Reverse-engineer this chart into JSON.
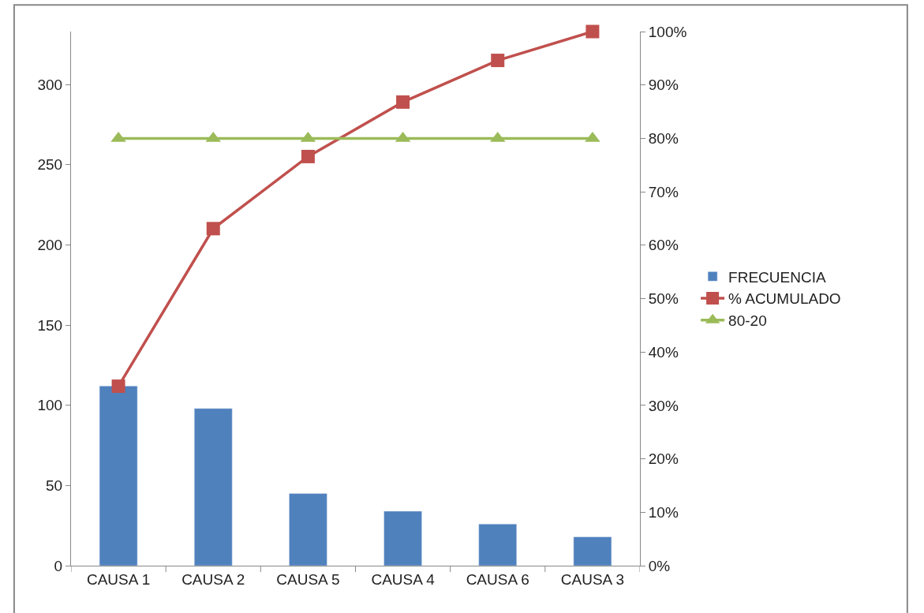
{
  "chart_data": {
    "type": "bar",
    "categories": [
      "CAUSA 1",
      "CAUSA 2",
      "CAUSA 5",
      "CAUSA 4",
      "CAUSA 6",
      "CAUSA 3"
    ],
    "series": [
      {
        "name": "FRECUENCIA",
        "color": "#4f81bd",
        "values": [
          112,
          98,
          45,
          34,
          26,
          18
        ]
      },
      {
        "name": "% ACUMULADO",
        "type": "line",
        "axis": "y2",
        "color": "#c0504d",
        "marker": "square",
        "values": [
          33.6,
          63.1,
          76.6,
          86.8,
          94.6,
          100
        ]
      },
      {
        "name": "80-20",
        "type": "line",
        "axis": "y2",
        "color": "#9bbb59",
        "marker": "triangle",
        "values": [
          80,
          80,
          80,
          80,
          80,
          80
        ]
      }
    ],
    "ylim": [
      0,
      333
    ],
    "yticks": [
      0,
      50,
      100,
      150,
      200,
      250,
      300
    ],
    "y2lim": [
      0,
      100
    ],
    "y2ticks": [
      {
        "value": 0,
        "label": "0%"
      },
      {
        "value": 10,
        "label": "10%"
      },
      {
        "value": 20,
        "label": "20%"
      },
      {
        "value": 30,
        "label": "30%"
      },
      {
        "value": 40,
        "label": "40%"
      },
      {
        "value": 50,
        "label": "50%"
      },
      {
        "value": 60,
        "label": "60%"
      },
      {
        "value": 70,
        "label": "70%"
      },
      {
        "value": 80,
        "label": "80%"
      },
      {
        "value": 90,
        "label": "90%"
      },
      {
        "value": 100,
        "label": "100%"
      }
    ],
    "legend": "right"
  }
}
